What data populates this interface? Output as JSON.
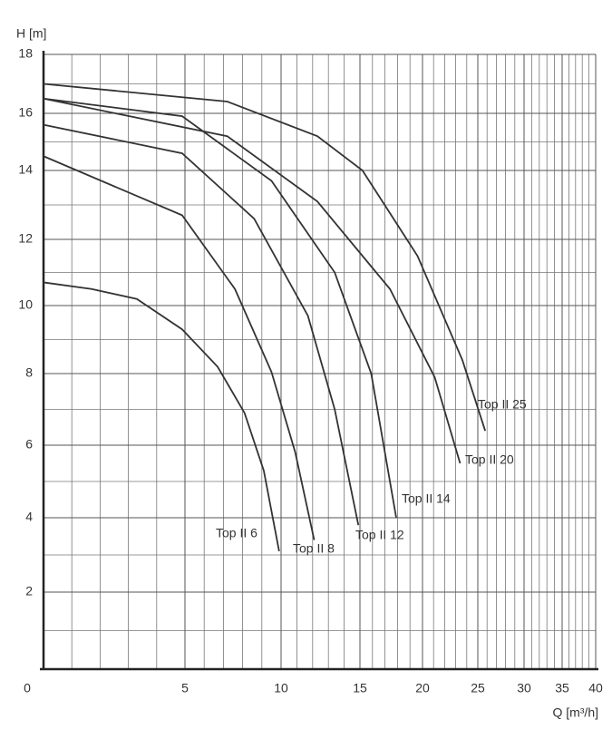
{
  "chart_data": {
    "type": "line",
    "y_label": "H [m]",
    "x_label": "Q [m³/h]",
    "xlim": [
      0,
      40
    ],
    "ylim": [
      0,
      18
    ],
    "xticks": [
      0,
      5,
      10,
      15,
      20,
      25,
      30,
      35,
      40
    ],
    "yticks": [
      0,
      2,
      4,
      6,
      8,
      10,
      12,
      14,
      16,
      18
    ],
    "grid": true,
    "series": [
      {
        "name": "Top II 6",
        "color": "#333333",
        "x": [
          0,
          1.7,
          3.3,
          4.9,
          6.7,
          8.1,
          9.1,
          9.9
        ],
        "values": [
          10.7,
          10.5,
          10.2,
          9.3,
          8.2,
          6.9,
          5.3,
          3.1
        ]
      },
      {
        "name": "Top II 8",
        "color": "#333333",
        "x": [
          0,
          4.9,
          7.6,
          9.5,
          10.9,
          12.1
        ],
        "values": [
          14.5,
          12.7,
          10.5,
          8.05,
          5.8,
          3.4
        ]
      },
      {
        "name": "Top II 12",
        "color": "#333333",
        "x": [
          0,
          4.9,
          8.6,
          11.7,
          13.4,
          14.9
        ],
        "values": [
          15.6,
          14.6,
          12.6,
          9.7,
          7.0,
          3.8
        ]
      },
      {
        "name": "Top II 14",
        "color": "#333333",
        "x": [
          0,
          4.9,
          9.5,
          13.4,
          15.9,
          17.9
        ],
        "values": [
          16.5,
          15.9,
          13.7,
          11.0,
          8.0,
          4.0
        ]
      },
      {
        "name": "Top II 20",
        "color": "#333333",
        "x": [
          0,
          7.2,
          12.3,
          17.4,
          21.1,
          23.4
        ],
        "values": [
          16.5,
          15.2,
          13.1,
          10.5,
          7.9,
          5.5
        ]
      },
      {
        "name": "Top II 25",
        "color": "#333333",
        "x": [
          0,
          7.2,
          12.3,
          15.2,
          19.6,
          23.6,
          25.8
        ],
        "values": [
          17.0,
          16.4,
          15.2,
          14.0,
          11.5,
          8.4,
          6.4
        ]
      }
    ]
  }
}
